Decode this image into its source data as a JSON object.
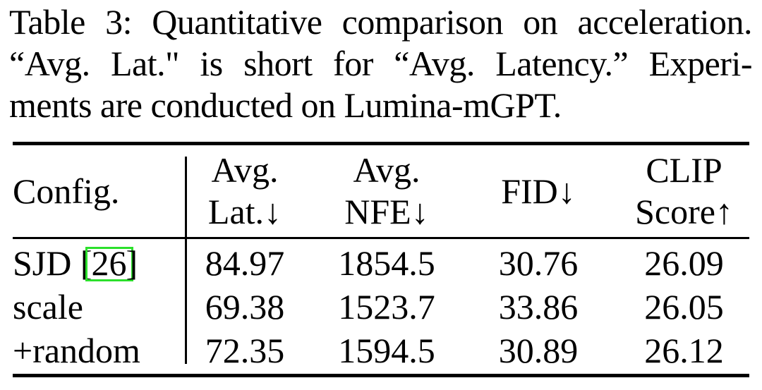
{
  "caption": {
    "line1": "Table 3: Quantitative comparison on acceleration.",
    "line2": "“Avg. Lat.\" is short for “Avg. Latency.” Experi-",
    "line3": "ments are conducted on Lumina-mGPT."
  },
  "table": {
    "columns": [
      {
        "id": "config",
        "lines": [
          "Config."
        ]
      },
      {
        "id": "avg_latency",
        "lines": [
          "Avg.",
          "Lat.↓"
        ]
      },
      {
        "id": "avg_nfe",
        "lines": [
          "Avg.",
          "NFE↓"
        ]
      },
      {
        "id": "fid",
        "lines": [
          "FID↓"
        ]
      },
      {
        "id": "clip_score",
        "lines": [
          "CLIP",
          "Score↑"
        ]
      }
    ],
    "rows": [
      {
        "config_prefix": "SJD [",
        "citation": "26",
        "config_suffix": "]",
        "avg_latency": "84.97",
        "avg_nfe": "1854.5",
        "fid": "30.76",
        "clip_score": "26.09"
      },
      {
        "config": "scale",
        "avg_latency": "69.38",
        "avg_nfe": "1523.7",
        "fid": "33.86",
        "clip_score": "26.05"
      },
      {
        "config": "+random",
        "avg_latency": "72.35",
        "avg_nfe": "1594.5",
        "fid": "30.89",
        "clip_score": "26.12"
      }
    ]
  },
  "colors": {
    "text": "#000000",
    "background": "#ffffff",
    "citation_box": "#2ce02c"
  }
}
